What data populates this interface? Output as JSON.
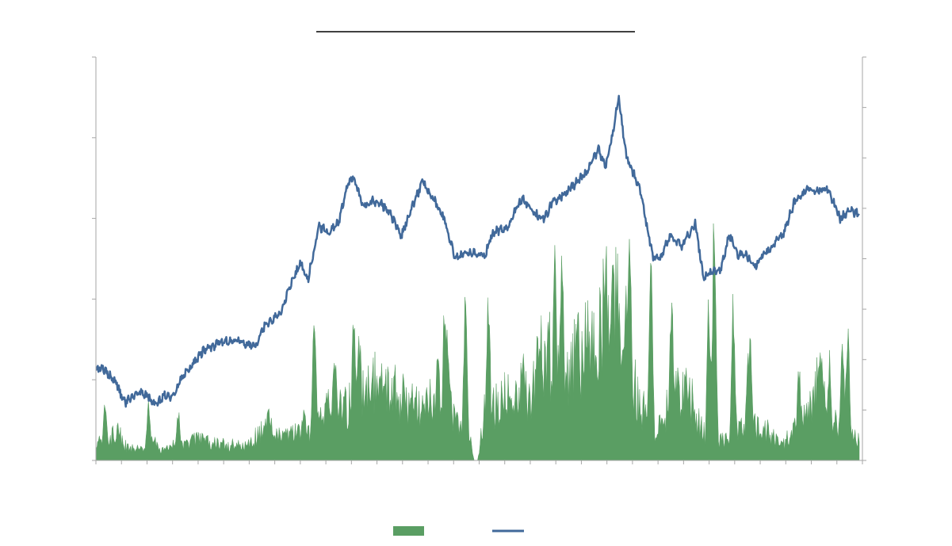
{
  "chart_data": {
    "type": "area-line-combo",
    "title": "",
    "xlabel": "",
    "ylabel_left": "",
    "ylabel_right": "",
    "grid": false,
    "legend_position": "bottom",
    "x_range": [
      0,
      1
    ],
    "y_left_range": [
      0,
      5
    ],
    "y_right_range": [
      0,
      8
    ],
    "left_ticks": [
      0,
      1,
      2,
      3,
      4,
      5
    ],
    "right_ticks": [
      0,
      1,
      2,
      3,
      4,
      5,
      6,
      7,
      8
    ],
    "x_tick_count": 30,
    "series": [
      {
        "kind": "area",
        "axis": "right",
        "color": "#5a9e63",
        "legend_swatch": "rect",
        "anchors": [
          [
            0.0,
            0.3
          ],
          [
            0.012,
            0.4
          ],
          [
            0.03,
            0.55
          ],
          [
            0.04,
            0.25
          ],
          [
            0.06,
            0.25
          ],
          [
            0.075,
            0.35
          ],
          [
            0.09,
            0.2
          ],
          [
            0.11,
            0.35
          ],
          [
            0.13,
            0.4
          ],
          [
            0.15,
            0.35
          ],
          [
            0.17,
            0.3
          ],
          [
            0.2,
            0.3
          ],
          [
            0.215,
            0.6
          ],
          [
            0.23,
            0.6
          ],
          [
            0.25,
            0.45
          ],
          [
            0.27,
            0.55
          ],
          [
            0.285,
            0.5
          ],
          [
            0.3,
            1.0
          ],
          [
            0.33,
            1.1
          ],
          [
            0.35,
            1.25
          ],
          [
            0.365,
            1.55
          ],
          [
            0.38,
            1.45
          ],
          [
            0.4,
            1.25
          ],
          [
            0.43,
            1.0
          ],
          [
            0.445,
            1.55
          ],
          [
            0.46,
            1.3
          ],
          [
            0.475,
            0.6
          ],
          [
            0.49,
            0.55
          ],
          [
            0.495,
            0.0
          ],
          [
            0.5,
            0.0
          ],
          [
            0.51,
            1.05
          ],
          [
            0.525,
            1.1
          ],
          [
            0.55,
            1.45
          ],
          [
            0.57,
            1.2
          ],
          [
            0.58,
            2.2
          ],
          [
            0.6,
            2.0
          ],
          [
            0.62,
            1.8
          ],
          [
            0.64,
            2.3
          ],
          [
            0.66,
            2.5
          ],
          [
            0.675,
            3.4
          ],
          [
            0.69,
            3.0
          ],
          [
            0.71,
            1.2
          ],
          [
            0.73,
            0.6
          ],
          [
            0.75,
            1.05
          ],
          [
            0.765,
            1.35
          ],
          [
            0.78,
            1.2
          ],
          [
            0.8,
            0.4
          ],
          [
            0.83,
            0.4
          ],
          [
            0.855,
            0.75
          ],
          [
            0.875,
            0.65
          ],
          [
            0.9,
            0.3
          ],
          [
            0.92,
            0.75
          ],
          [
            0.935,
            0.95
          ],
          [
            0.95,
            1.7
          ],
          [
            0.97,
            0.8
          ],
          [
            0.985,
            0.65
          ],
          [
            1.0,
            0.4
          ]
        ],
        "spikes": [
          [
            0.012,
            1.2
          ],
          [
            0.069,
            1.2
          ],
          [
            0.108,
            1.1
          ],
          [
            0.226,
            1.2
          ],
          [
            0.273,
            1.1
          ],
          [
            0.286,
            3.3
          ],
          [
            0.313,
            2.4
          ],
          [
            0.338,
            3.5
          ],
          [
            0.345,
            2.9
          ],
          [
            0.374,
            2.2
          ],
          [
            0.448,
            2.8
          ],
          [
            0.457,
            3.4
          ],
          [
            0.46,
            3.2
          ],
          [
            0.484,
            3.5
          ],
          [
            0.514,
            3.9
          ],
          [
            0.56,
            2.2
          ],
          [
            0.578,
            2.6
          ],
          [
            0.601,
            4.3
          ],
          [
            0.611,
            4.4
          ],
          [
            0.632,
            3.1
          ],
          [
            0.676,
            4.7
          ],
          [
            0.699,
            5.5
          ],
          [
            0.727,
            4.3
          ],
          [
            0.754,
            3.6
          ],
          [
            0.803,
            3.5
          ],
          [
            0.81,
            5.3
          ],
          [
            0.835,
            3.4
          ],
          [
            0.854,
            2.4
          ],
          [
            0.857,
            3.0
          ],
          [
            0.921,
            2.1
          ],
          [
            0.961,
            2.3
          ],
          [
            0.978,
            2.5
          ],
          [
            0.985,
            3.1
          ]
        ]
      },
      {
        "kind": "line",
        "axis": "left",
        "color": "#41699a",
        "legend_swatch": "line",
        "anchors": [
          [
            0.0,
            1.12
          ],
          [
            0.008,
            1.15
          ],
          [
            0.018,
            1.05
          ],
          [
            0.026,
            0.98
          ],
          [
            0.032,
            0.82
          ],
          [
            0.04,
            0.72
          ],
          [
            0.048,
            0.8
          ],
          [
            0.06,
            0.85
          ],
          [
            0.07,
            0.78
          ],
          [
            0.073,
            0.7
          ],
          [
            0.08,
            0.7
          ],
          [
            0.09,
            0.82
          ],
          [
            0.1,
            0.78
          ],
          [
            0.11,
            0.98
          ],
          [
            0.125,
            1.17
          ],
          [
            0.14,
            1.35
          ],
          [
            0.16,
            1.45
          ],
          [
            0.18,
            1.5
          ],
          [
            0.195,
            1.45
          ],
          [
            0.21,
            1.42
          ],
          [
            0.222,
            1.7
          ],
          [
            0.24,
            1.8
          ],
          [
            0.256,
            2.2
          ],
          [
            0.268,
            2.45
          ],
          [
            0.278,
            2.25
          ],
          [
            0.292,
            2.9
          ],
          [
            0.305,
            2.82
          ],
          [
            0.318,
            2.95
          ],
          [
            0.33,
            3.45
          ],
          [
            0.338,
            3.5
          ],
          [
            0.35,
            3.15
          ],
          [
            0.362,
            3.22
          ],
          [
            0.378,
            3.15
          ],
          [
            0.392,
            2.95
          ],
          [
            0.4,
            2.78
          ],
          [
            0.41,
            3.05
          ],
          [
            0.428,
            3.45
          ],
          [
            0.445,
            3.2
          ],
          [
            0.458,
            2.95
          ],
          [
            0.47,
            2.52
          ],
          [
            0.482,
            2.55
          ],
          [
            0.495,
            2.58
          ],
          [
            0.51,
            2.55
          ],
          [
            0.52,
            2.82
          ],
          [
            0.54,
            2.9
          ],
          [
            0.558,
            3.25
          ],
          [
            0.575,
            3.05
          ],
          [
            0.588,
            3.0
          ],
          [
            0.598,
            3.2
          ],
          [
            0.615,
            3.3
          ],
          [
            0.63,
            3.45
          ],
          [
            0.645,
            3.6
          ],
          [
            0.658,
            3.85
          ],
          [
            0.668,
            3.65
          ],
          [
            0.676,
            4.0
          ],
          [
            0.685,
            4.5
          ],
          [
            0.694,
            3.8
          ],
          [
            0.702,
            3.6
          ],
          [
            0.712,
            3.4
          ],
          [
            0.722,
            2.9
          ],
          [
            0.73,
            2.5
          ],
          [
            0.74,
            2.52
          ],
          [
            0.752,
            2.78
          ],
          [
            0.768,
            2.65
          ],
          [
            0.785,
            2.95
          ],
          [
            0.796,
            2.25
          ],
          [
            0.808,
            2.35
          ],
          [
            0.818,
            2.35
          ],
          [
            0.83,
            2.8
          ],
          [
            0.84,
            2.55
          ],
          [
            0.852,
            2.55
          ],
          [
            0.862,
            2.4
          ],
          [
            0.876,
            2.55
          ],
          [
            0.9,
            2.8
          ],
          [
            0.915,
            3.2
          ],
          [
            0.932,
            3.35
          ],
          [
            0.946,
            3.35
          ],
          [
            0.958,
            3.38
          ],
          [
            0.975,
            3.0
          ],
          [
            0.99,
            3.1
          ],
          [
            1.0,
            3.05
          ]
        ]
      }
    ]
  }
}
